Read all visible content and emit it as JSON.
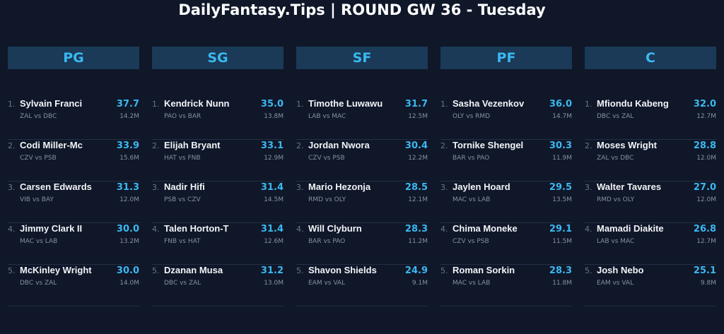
{
  "title": "DailyFantasy.Tips | ROUND GW 36 - Tuesday",
  "colors": {
    "background": "#0f1729",
    "accent": "#3bb8f0",
    "header_bg": "#1a3a57"
  },
  "positions": [
    {
      "label": "PG",
      "players": [
        {
          "rank": "1.",
          "name": "Sylvain Franci",
          "score": "37.7",
          "match": "ZAL vs DBC",
          "salary": "14.2M"
        },
        {
          "rank": "2.",
          "name": "Codi Miller-Mc",
          "score": "33.9",
          "match": "CZV vs PSB",
          "salary": "15.6M"
        },
        {
          "rank": "3.",
          "name": "Carsen Edwards",
          "score": "31.3",
          "match": "VIB vs BAY",
          "salary": "12.0M"
        },
        {
          "rank": "4.",
          "name": "Jimmy Clark II",
          "score": "30.0",
          "match": "MAC vs LAB",
          "salary": "13.2M"
        },
        {
          "rank": "5.",
          "name": "McKinley Wright",
          "score": "30.0",
          "match": "DBC vs ZAL",
          "salary": "14.0M"
        }
      ]
    },
    {
      "label": "SG",
      "players": [
        {
          "rank": "1.",
          "name": "Kendrick Nunn",
          "score": "35.0",
          "match": "PAO vs BAR",
          "salary": "13.8M"
        },
        {
          "rank": "2.",
          "name": "Elijah Bryant",
          "score": "33.1",
          "match": "HAT vs FNB",
          "salary": "12.9M"
        },
        {
          "rank": "3.",
          "name": "Nadir Hifi",
          "score": "31.4",
          "match": "PSB vs CZV",
          "salary": "14.5M"
        },
        {
          "rank": "4.",
          "name": "Talen Horton-T",
          "score": "31.4",
          "match": "FNB vs HAT",
          "salary": "12.6M"
        },
        {
          "rank": "5.",
          "name": "Dzanan Musa",
          "score": "31.2",
          "match": "DBC vs ZAL",
          "salary": "13.0M"
        }
      ]
    },
    {
      "label": "SF",
      "players": [
        {
          "rank": "1.",
          "name": "Timothe Luwawu",
          "score": "31.7",
          "match": "LAB vs MAC",
          "salary": "12.5M"
        },
        {
          "rank": "2.",
          "name": "Jordan Nwora",
          "score": "30.4",
          "match": "CZV vs PSB",
          "salary": "12.2M"
        },
        {
          "rank": "3.",
          "name": "Mario Hezonja",
          "score": "28.5",
          "match": "RMD vs OLY",
          "salary": "12.1M"
        },
        {
          "rank": "4.",
          "name": "Will Clyburn",
          "score": "28.3",
          "match": "BAR vs PAO",
          "salary": "11.2M"
        },
        {
          "rank": "5.",
          "name": "Shavon Shields",
          "score": "24.9",
          "match": "EAM vs VAL",
          "salary": "9.1M"
        }
      ]
    },
    {
      "label": "PF",
      "players": [
        {
          "rank": "1.",
          "name": "Sasha Vezenkov",
          "score": "36.0",
          "match": "OLY vs RMD",
          "salary": "14.7M"
        },
        {
          "rank": "2.",
          "name": "Tornike Shengel",
          "score": "30.3",
          "match": "BAR vs PAO",
          "salary": "11.9M"
        },
        {
          "rank": "3.",
          "name": "Jaylen Hoard",
          "score": "29.5",
          "match": "MAC vs LAB",
          "salary": "13.5M"
        },
        {
          "rank": "4.",
          "name": "Chima Moneke",
          "score": "29.1",
          "match": "CZV vs PSB",
          "salary": "11.5M"
        },
        {
          "rank": "5.",
          "name": "Roman Sorkin",
          "score": "28.3",
          "match": "MAC vs LAB",
          "salary": "11.8M"
        }
      ]
    },
    {
      "label": "C",
      "players": [
        {
          "rank": "1.",
          "name": "Mfiondu Kabeng",
          "score": "32.0",
          "match": "DBC vs ZAL",
          "salary": "12.7M"
        },
        {
          "rank": "2.",
          "name": "Moses Wright",
          "score": "28.8",
          "match": "ZAL vs DBC",
          "salary": "12.0M"
        },
        {
          "rank": "3.",
          "name": "Walter Tavares",
          "score": "27.0",
          "match": "RMD vs OLY",
          "salary": "12.0M"
        },
        {
          "rank": "4.",
          "name": "Mamadi Diakite",
          "score": "26.8",
          "match": "LAB vs MAC",
          "salary": "12.7M"
        },
        {
          "rank": "5.",
          "name": "Josh Nebo",
          "score": "25.1",
          "match": "EAM vs VAL",
          "salary": "9.8M"
        }
      ]
    }
  ]
}
